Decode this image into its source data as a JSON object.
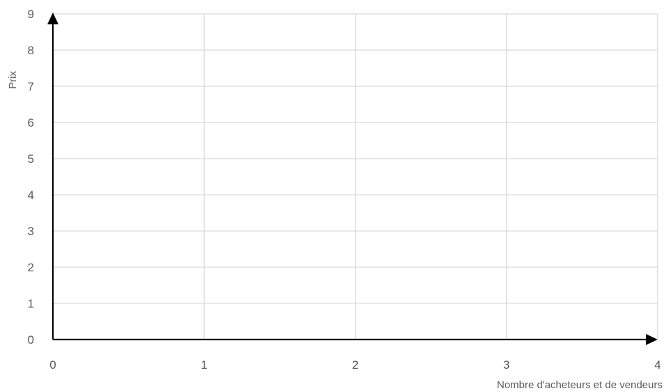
{
  "chart_data": {
    "type": "line",
    "title": "",
    "xlabel": "Nombre d'acheteurs et de vendeurs",
    "ylabel": "Prix",
    "xlim": [
      0,
      4
    ],
    "ylim": [
      0,
      9
    ],
    "x_ticks": [
      "0",
      "1",
      "2",
      "3",
      "4"
    ],
    "y_ticks": [
      "0",
      "1",
      "2",
      "3",
      "4",
      "5",
      "6",
      "7",
      "8",
      "9"
    ],
    "grid": true,
    "series": [],
    "colors": {
      "grid": "#d9d9d9",
      "axis": "#000000",
      "text": "#595959"
    }
  }
}
